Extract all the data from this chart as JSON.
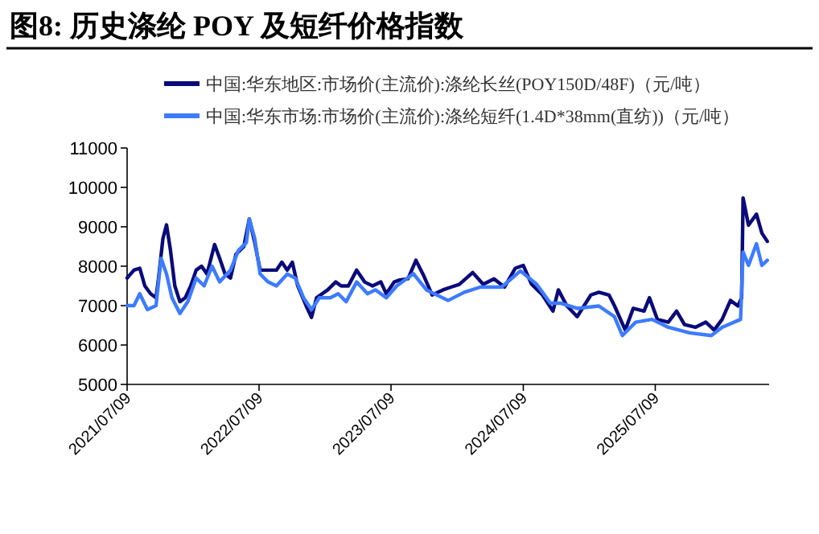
{
  "chart_data": {
    "type": "line",
    "title": "图8:  历史涤纶 POY 及短纤价格指数",
    "legend": "top",
    "grid": false,
    "marker": "none",
    "line_style": "solid",
    "ylim": [
      5000,
      11000
    ],
    "yticks": [
      5000,
      6000,
      7000,
      8000,
      9000,
      10000,
      11000
    ],
    "xlim": [
      "2021-07-09",
      "2026-05-20"
    ],
    "xticks": [
      {
        "value": "2021-07-09",
        "label": "2021/07/09"
      },
      {
        "value": "2022-07-09",
        "label": "2022/07/09"
      },
      {
        "value": "2023-07-09",
        "label": "2023/07/09"
      },
      {
        "value": "2024-07-09",
        "label": "2024/07/09"
      },
      {
        "value": "2025-07-09",
        "label": "2025/07/09"
      }
    ],
    "series": [
      {
        "name": "中国:华东地区:市场价(主流价):涤纶长丝(POY150D/48F)（元/吨）",
        "color": "#0a0a7a",
        "x": [
          "2021-07-09",
          "2021-07-28",
          "2021-08-13",
          "2021-08-27",
          "2021-09-12",
          "2021-09-27",
          "2021-10-04",
          "2021-10-16",
          "2021-10-26",
          "2021-11-06",
          "2021-11-18",
          "2021-12-02",
          "2021-12-17",
          "2022-01-01",
          "2022-01-16",
          "2022-01-31",
          "2022-02-15",
          "2022-03-08",
          "2022-03-22",
          "2022-04-06",
          "2022-04-21",
          "2022-05-06",
          "2022-05-28",
          "2022-06-12",
          "2022-06-27",
          "2022-07-12",
          "2022-08-03",
          "2022-08-26",
          "2022-09-10",
          "2022-09-25",
          "2022-10-09",
          "2022-10-24",
          "2022-11-16",
          "2022-12-01",
          "2022-12-15",
          "2023-01-15",
          "2023-02-06",
          "2023-02-21",
          "2023-03-13",
          "2023-04-05",
          "2023-04-27",
          "2023-05-19",
          "2023-06-11",
          "2023-06-26",
          "2023-07-18",
          "2023-08-02",
          "2023-08-25",
          "2023-09-16",
          "2023-10-08",
          "2023-10-31",
          "2023-11-30",
          "2023-12-22",
          "2024-01-14",
          "2024-02-20",
          "2024-03-20",
          "2024-04-19",
          "2024-05-18",
          "2024-06-17",
          "2024-07-09",
          "2024-08-01",
          "2024-08-31",
          "2024-09-29",
          "2024-10-14",
          "2024-11-06",
          "2024-12-05",
          "2025-01-12",
          "2025-02-03",
          "2025-03-03",
          "2025-03-18",
          "2025-04-17",
          "2025-05-09",
          "2025-06-08",
          "2025-06-23",
          "2025-07-15",
          "2025-08-14",
          "2025-09-06",
          "2025-09-28",
          "2025-10-28",
          "2025-11-26",
          "2025-12-19",
          "2026-01-10",
          "2026-02-02",
          "2026-02-23",
          "2026-03-05",
          "2026-03-09",
          "2026-03-24",
          "2026-04-15",
          "2026-04-30",
          "2026-05-15"
        ],
        "values": [
          7700,
          7900,
          7950,
          7500,
          7300,
          7200,
          7700,
          8700,
          9050,
          8400,
          7500,
          7100,
          7200,
          7500,
          7900,
          8000,
          7800,
          8550,
          8200,
          7800,
          7700,
          8300,
          8500,
          9200,
          8600,
          7900,
          7900,
          7900,
          8100,
          7900,
          8100,
          7500,
          7000,
          6700,
          7200,
          7400,
          7600,
          7500,
          7500,
          7900,
          7600,
          7500,
          7600,
          7300,
          7600,
          7650,
          7680,
          8150,
          7750,
          7270,
          7400,
          7470,
          7540,
          7840,
          7540,
          7680,
          7470,
          7950,
          8020,
          7540,
          7270,
          6860,
          7400,
          7000,
          6720,
          7270,
          7340,
          7270,
          7000,
          6380,
          6930,
          6860,
          7200,
          6650,
          6580,
          6860,
          6520,
          6450,
          6580,
          6380,
          6650,
          7130,
          6990,
          7200,
          9730,
          9040,
          9320,
          8840,
          8630
        ]
      },
      {
        "name": "中国:华东市场:市场价(主流价):涤纶短纤(1.4D*38mm(直纺))（元/吨）",
        "color": "#3d7bff",
        "x": [
          "2021-07-09",
          "2021-07-28",
          "2021-08-13",
          "2021-09-03",
          "2021-09-27",
          "2021-10-11",
          "2021-10-26",
          "2021-11-10",
          "2021-12-02",
          "2021-12-24",
          "2022-01-16",
          "2022-02-07",
          "2022-03-01",
          "2022-03-22",
          "2022-04-21",
          "2022-05-13",
          "2022-06-04",
          "2022-06-12",
          "2022-06-27",
          "2022-07-12",
          "2022-08-03",
          "2022-08-26",
          "2022-09-25",
          "2022-10-17",
          "2022-11-09",
          "2022-12-01",
          "2022-12-23",
          "2023-01-22",
          "2023-02-13",
          "2023-03-07",
          "2023-04-05",
          "2023-05-05",
          "2023-05-27",
          "2023-06-26",
          "2023-07-25",
          "2023-09-09",
          "2023-10-15",
          "2023-12-14",
          "2024-01-28",
          "2024-03-12",
          "2024-05-10",
          "2024-07-01",
          "2024-08-15",
          "2024-09-22",
          "2024-10-21",
          "2024-12-05",
          "2025-02-03",
          "2025-03-18",
          "2025-04-09",
          "2025-05-16",
          "2025-06-30",
          "2025-08-14",
          "2025-10-12",
          "2025-12-11",
          "2026-01-10",
          "2026-03-02",
          "2026-03-09",
          "2026-03-24",
          "2026-04-15",
          "2026-04-30",
          "2026-05-15"
        ],
        "values": [
          7000,
          7000,
          7300,
          6900,
          7000,
          8200,
          7800,
          7200,
          6800,
          7100,
          7700,
          7500,
          8000,
          7600,
          7900,
          8400,
          8600,
          9200,
          8700,
          7800,
          7600,
          7500,
          7800,
          7700,
          7200,
          6900,
          7200,
          7200,
          7300,
          7100,
          7600,
          7300,
          7400,
          7200,
          7500,
          7810,
          7400,
          7130,
          7340,
          7470,
          7470,
          7880,
          7540,
          7060,
          7060,
          6930,
          6990,
          6720,
          6240,
          6580,
          6650,
          6450,
          6310,
          6240,
          6450,
          6650,
          8360,
          8020,
          8570,
          8020,
          8150
        ]
      }
    ]
  }
}
